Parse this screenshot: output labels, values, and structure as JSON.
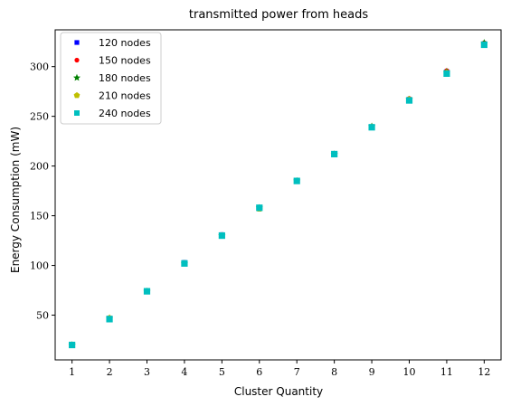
{
  "chart_data": {
    "type": "scatter",
    "title": "transmitted power from heads",
    "xlabel": "Cluster Quantity",
    "ylabel": "Energy Consumption (mW)",
    "xlim": [
      0.55,
      12.45
    ],
    "ylim": [
      5,
      337
    ],
    "xticks": [
      1,
      2,
      3,
      4,
      5,
      6,
      7,
      8,
      9,
      10,
      11,
      12
    ],
    "yticks": [
      50,
      100,
      150,
      200,
      250,
      300
    ],
    "legend_position": "upper-left",
    "grid": false,
    "series": [
      {
        "name": "120 nodes",
        "color": "#0000ff",
        "marker": "square",
        "x": [
          1,
          2,
          3,
          4,
          5,
          6,
          7,
          8,
          9,
          10,
          11,
          12
        ],
        "y": [
          20,
          47,
          74,
          103,
          131,
          158,
          185,
          212,
          239,
          267,
          295,
          323
        ]
      },
      {
        "name": "150 nodes",
        "color": "#ff0000",
        "marker": "circle",
        "x": [
          1,
          2,
          3,
          4,
          5,
          6,
          7,
          8,
          9,
          10,
          11,
          12
        ],
        "y": [
          20,
          47,
          74,
          102,
          130,
          158,
          185,
          212,
          240,
          268,
          296,
          324
        ]
      },
      {
        "name": "180 nodes",
        "color": "#008000",
        "marker": "star",
        "x": [
          1,
          2,
          3,
          4,
          5,
          6,
          7,
          8,
          9,
          10,
          11,
          12
        ],
        "y": [
          20,
          47,
          74,
          102,
          130,
          158,
          185,
          212,
          240,
          267,
          295,
          324
        ]
      },
      {
        "name": "210 nodes",
        "color": "#bfbf00",
        "marker": "pentagon",
        "x": [
          1,
          2,
          3,
          4,
          5,
          6,
          7,
          8,
          9,
          10,
          11,
          12
        ],
        "y": [
          20,
          47,
          74,
          102,
          130,
          157,
          185,
          212,
          239,
          267,
          294,
          322
        ]
      },
      {
        "name": "240 nodes",
        "color": "#00bfbf",
        "marker": "square",
        "x": [
          1,
          2,
          3,
          4,
          5,
          6,
          7,
          8,
          9,
          10,
          11,
          12
        ],
        "y": [
          20,
          46,
          74,
          102,
          130,
          158,
          185,
          212,
          239,
          266,
          293,
          322
        ]
      }
    ]
  }
}
